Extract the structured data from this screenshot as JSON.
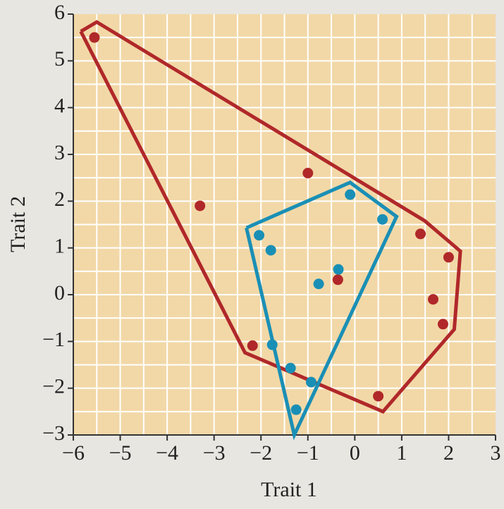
{
  "chart_data": {
    "type": "scatter",
    "xlabel": "Trait 1",
    "ylabel": "Trait 2",
    "xlim": [
      -6,
      3
    ],
    "ylim": [
      -3,
      6
    ],
    "xticks": [
      {
        "value": -6,
        "label": "−6"
      },
      {
        "value": -5,
        "label": "−5"
      },
      {
        "value": -4,
        "label": "−4"
      },
      {
        "value": -3,
        "label": "−3"
      },
      {
        "value": -2,
        "label": "−2"
      },
      {
        "value": -1,
        "label": "−1"
      },
      0,
      1,
      2,
      3
    ],
    "yticks": [
      {
        "value": -3,
        "label": "−3"
      },
      {
        "value": -2,
        "label": "−2"
      },
      {
        "value": -1,
        "label": "−1"
      },
      0,
      1,
      2,
      3,
      4,
      5,
      6
    ],
    "xgrid": [
      -5.5,
      -5,
      -4.5,
      -4,
      -3.5,
      -3,
      -2.5,
      -2,
      -1.5,
      -1,
      -0.5,
      0,
      0.5,
      1,
      1.5,
      2,
      2.5
    ],
    "ygrid": [
      -2.5,
      -2,
      -1.5,
      -1,
      -0.5,
      0,
      0.5,
      1,
      1.5,
      2,
      2.5,
      3,
      3.5,
      4,
      4.5,
      5,
      5.5
    ],
    "grid": true,
    "series": [
      {
        "color": "#b0282a",
        "x": [
          -5.55,
          -3.3,
          -1,
          1.4,
          2,
          1.67,
          1.88,
          -0.36,
          -2.18,
          0.5
        ],
        "values": [
          5.5,
          1.9,
          2.6,
          1.3,
          0.8,
          -0.1,
          -0.63,
          0.32,
          -1.09,
          -2.17
        ],
        "hull_x": [
          -5.84,
          -5.5,
          1.49,
          2.25,
          2.12,
          0.6,
          -2.34,
          -5.84
        ],
        "hull_y": [
          5.63,
          5.83,
          1.58,
          0.93,
          -0.74,
          -2.5,
          -1.24,
          5.63
        ]
      },
      {
        "color": "#1a8fb5",
        "x": [
          -0.1,
          0.59,
          -2.04,
          -1.79,
          -0.35,
          -0.77,
          -1.76,
          -1.37,
          -0.93,
          -1.25
        ],
        "values": [
          2.14,
          1.61,
          1.27,
          0.95,
          0.54,
          0.23,
          -1.07,
          -1.57,
          -1.87,
          -2.46
        ],
        "hull_x": [
          -2.31,
          -0.1,
          0.89,
          -1.29,
          -2.31
        ],
        "hull_y": [
          1.43,
          2.4,
          1.67,
          -3,
          1.43
        ]
      }
    ]
  }
}
